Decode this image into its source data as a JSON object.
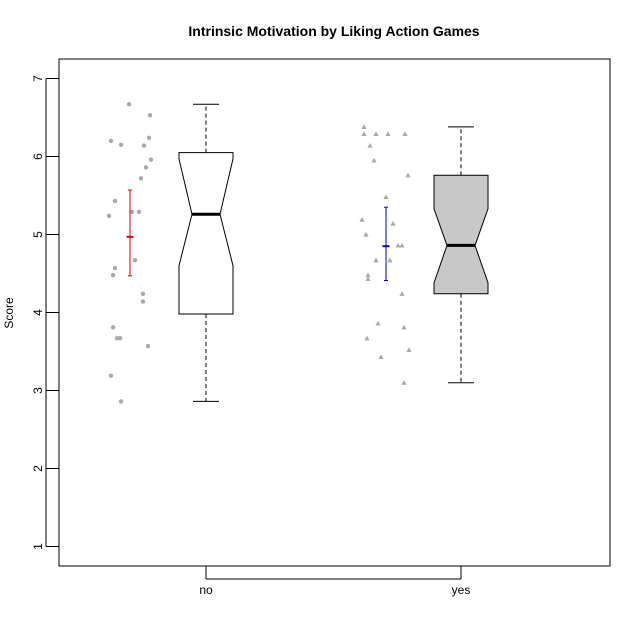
{
  "chart_data": {
    "type": "boxplot",
    "title": "Intrinsic Motivation by Liking Action Games",
    "xlabel": "",
    "ylabel": "Score",
    "ylim": [
      0.75,
      7.25
    ],
    "yticks": [
      1,
      2,
      3,
      4,
      5,
      6,
      7
    ],
    "categories": [
      "no",
      "yes"
    ],
    "colors": {
      "box_fill": [
        "#ffffff",
        "#c8c8c8"
      ],
      "point": "#a9a9a9",
      "mean_ci": [
        "#e00000",
        "#0000cc"
      ]
    },
    "groups": [
      {
        "category": "no",
        "point_shape": "circle",
        "box": {
          "min": 2.86,
          "q1": 3.98,
          "median": 5.26,
          "q3": 6.05,
          "max": 6.67,
          "notch_low": 4.6,
          "notch_high": 5.97
        },
        "mean": 4.97,
        "ci": [
          4.47,
          5.57
        ],
        "points": [
          6.67,
          6.53,
          6.24,
          6.2,
          6.15,
          6.14,
          5.96,
          5.86,
          5.72,
          5.43,
          5.29,
          5.29,
          5.24,
          4.67,
          4.57,
          4.48,
          4.24,
          4.14,
          3.81,
          3.67,
          3.67,
          3.57,
          3.19,
          2.86
        ]
      },
      {
        "category": "yes",
        "point_shape": "triangle",
        "box": {
          "min": 3.1,
          "q1": 4.24,
          "median": 4.86,
          "q3": 5.76,
          "max": 6.38,
          "notch_low": 4.38,
          "notch_high": 5.33
        },
        "mean": 4.85,
        "ci": [
          4.41,
          5.35
        ],
        "points": [
          6.38,
          6.29,
          6.29,
          6.29,
          6.29,
          6.14,
          5.95,
          5.76,
          5.48,
          5.19,
          5.14,
          5.0,
          4.86,
          4.86,
          4.67,
          4.67,
          4.48,
          4.43,
          4.24,
          3.86,
          3.81,
          3.67,
          3.52,
          3.43,
          3.1
        ]
      }
    ]
  }
}
